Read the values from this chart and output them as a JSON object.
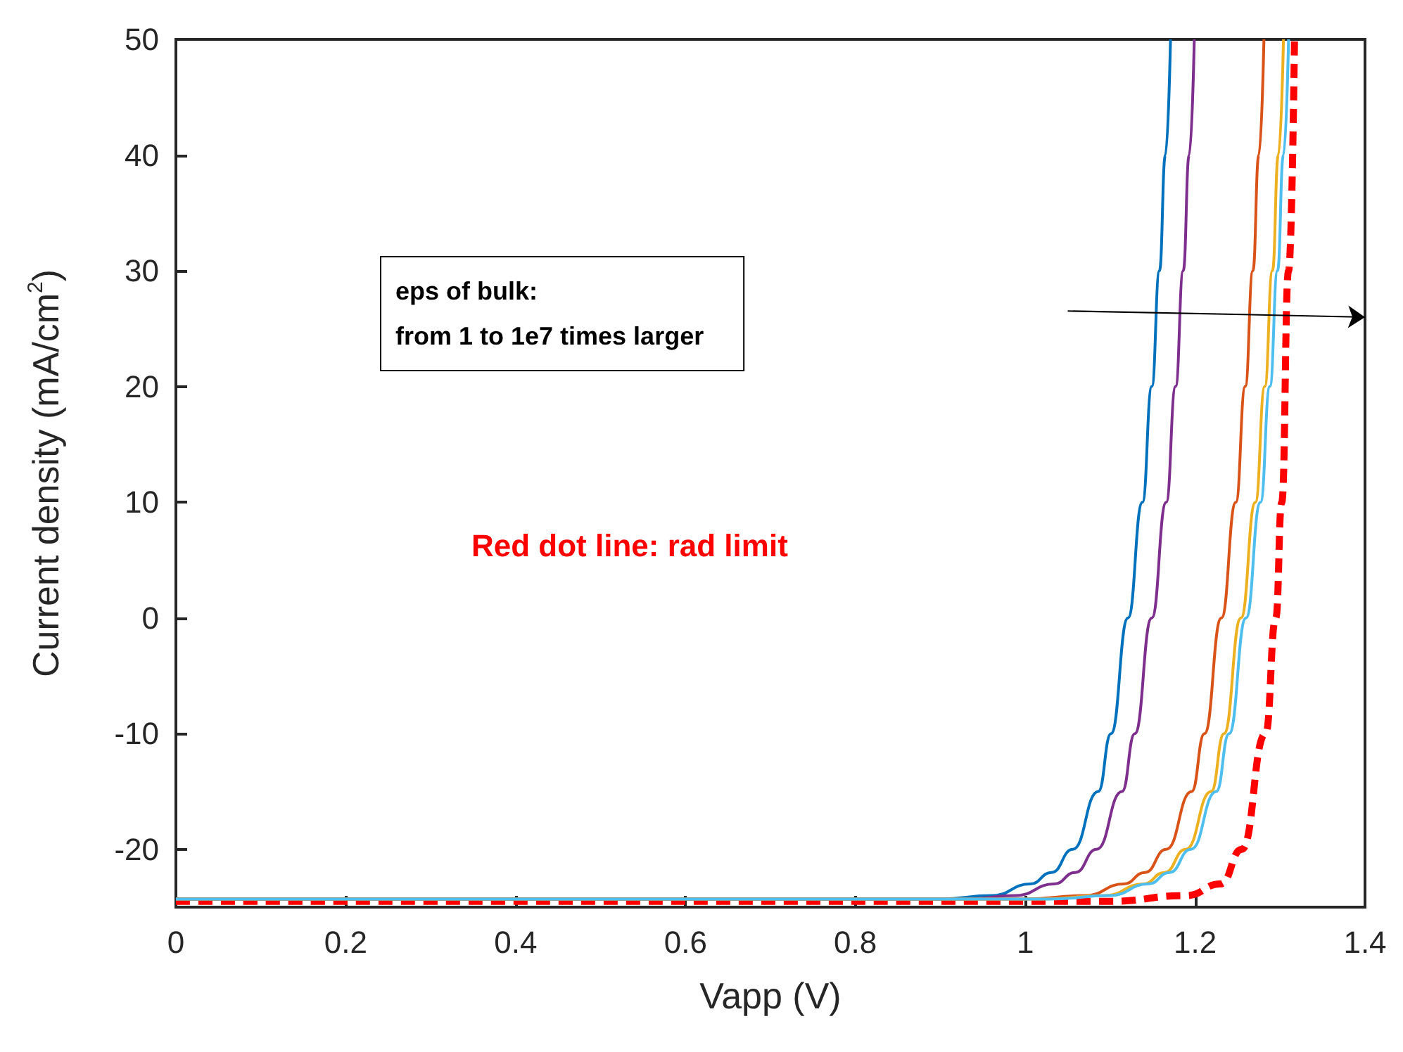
{
  "chart_data": {
    "type": "line",
    "xlabel": "Vapp (V)",
    "ylabel": "Current density (mA/cm$^{2}$)",
    "xlim": [
      0,
      1.4
    ],
    "xticks": [
      0,
      0.2,
      0.4,
      0.6,
      0.8,
      1,
      1.2,
      1.4
    ],
    "ylim": [
      -25,
      50
    ],
    "yticks": [
      -20,
      -10,
      0,
      10,
      20,
      30,
      40,
      50
    ],
    "grid": false,
    "marker": "none",
    "annotations": [
      "eps of bulk:\nfrom 1 to 1e7 times larger",
      "Red dot line: rad limit"
    ],
    "series": [
      {
        "color": "#0072bd",
        "x": [
          0,
          0.9,
          0.961,
          1.006,
          1.031,
          1.056,
          1.086,
          1.101,
          1.121,
          1.138,
          1.149,
          1.158,
          1.165,
          1.171
        ],
        "values": [
          -24.3,
          -24.3,
          -24,
          -23,
          -22,
          -20,
          -15,
          -10,
          0,
          10,
          20,
          30,
          40,
          50
        ]
      },
      {
        "color": "#7e2f8e",
        "x": [
          0,
          0.93,
          0.989,
          1.034,
          1.059,
          1.084,
          1.114,
          1.129,
          1.149,
          1.166,
          1.177,
          1.186,
          1.193,
          1.199
        ],
        "values": [
          -24.3,
          -24.3,
          -24,
          -23,
          -22,
          -20,
          -15,
          -10,
          0,
          10,
          20,
          30,
          40,
          50
        ]
      },
      {
        "color": "#d95319",
        "x": [
          0,
          1.0,
          1.071,
          1.116,
          1.141,
          1.166,
          1.196,
          1.211,
          1.231,
          1.248,
          1.259,
          1.268,
          1.275,
          1.281
        ],
        "values": [
          -24.3,
          -24.3,
          -24,
          -23,
          -22,
          -20,
          -15,
          -10,
          0,
          10,
          20,
          30,
          40,
          50
        ]
      },
      {
        "color": "#edb120",
        "x": [
          0,
          1.02,
          1.094,
          1.139,
          1.164,
          1.189,
          1.219,
          1.234,
          1.254,
          1.271,
          1.282,
          1.291,
          1.298,
          1.304
        ],
        "values": [
          -24.3,
          -24.3,
          -24,
          -23,
          -22,
          -20,
          -15,
          -10,
          0,
          10,
          20,
          30,
          40,
          50
        ]
      },
      {
        "color": "#4dbeee",
        "x": [
          0,
          1.03,
          1.1,
          1.145,
          1.17,
          1.195,
          1.225,
          1.24,
          1.26,
          1.277,
          1.288,
          1.297,
          1.304,
          1.31
        ],
        "values": [
          -24.3,
          -24.3,
          -24,
          -23,
          -22,
          -20,
          -15,
          -10,
          0,
          10,
          20,
          30,
          40,
          50
        ]
      },
      {
        "color": "#ff0000",
        "line_style": "dashed",
        "x": [
          0,
          1.1,
          1.19,
          1.23,
          1.255,
          1.283,
          1.295,
          1.302,
          1.31,
          1.317
        ],
        "values": [
          -24.5,
          -24.5,
          -24,
          -23,
          -20,
          -10,
          0,
          10,
          30,
          50
        ]
      }
    ]
  }
}
